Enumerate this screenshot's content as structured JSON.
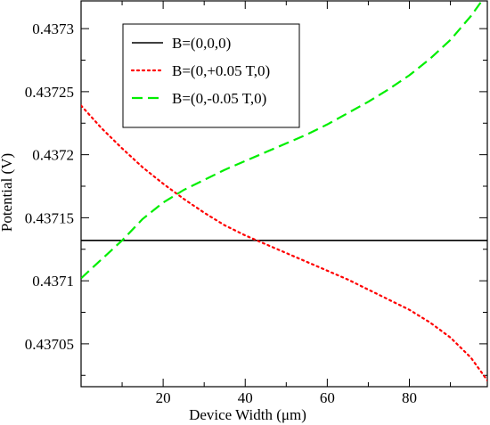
{
  "chart_data": {
    "type": "line",
    "xlabel": "Device Width (μm)",
    "ylabel": "Potential (V)",
    "xlim": [
      0,
      99
    ],
    "ylim": [
      0.437016,
      0.437322
    ],
    "x_ticks": [
      20,
      40,
      60,
      80
    ],
    "x_tick_labels": [
      "20",
      "40",
      "60",
      "80"
    ],
    "y_ticks": [
      0.43705,
      0.4371,
      0.43715,
      0.4372,
      0.43725,
      0.4373
    ],
    "y_tick_labels": [
      "0.43705",
      "0.4371",
      "0.43715",
      "0.4372",
      "0.43725",
      "0.4373"
    ],
    "grid": false,
    "legend_position": "top-left",
    "x": [
      0,
      5,
      10,
      15,
      20,
      25,
      30,
      35,
      40,
      45,
      50,
      55,
      60,
      65,
      70,
      75,
      80,
      85,
      90,
      95,
      99
    ],
    "series": [
      {
        "name": "B=(0,0,0)",
        "color": "#000000",
        "dash": "solid",
        "values": [
          0.437132,
          0.437132,
          0.437132,
          0.437132,
          0.437132,
          0.437132,
          0.437132,
          0.437132,
          0.437132,
          0.437132,
          0.437132,
          0.437132,
          0.437132,
          0.437132,
          0.437132,
          0.437132,
          0.437132,
          0.437132,
          0.437132,
          0.437132,
          0.437132
        ]
      },
      {
        "name": "B=(0,+0.05 T,0)",
        "color": "#ff0000",
        "dash": "dotted",
        "values": [
          0.437239,
          0.437221,
          0.437205,
          0.43719,
          0.437177,
          0.437165,
          0.437154,
          0.437144,
          0.437136,
          0.437129,
          0.437122,
          0.437115,
          0.437108,
          0.437101,
          0.437093,
          0.437085,
          0.437077,
          0.437067,
          0.437055,
          0.437039,
          0.437021
        ]
      },
      {
        "name": "B=(0,-0.05 T,0)",
        "color": "#00ee00",
        "dash": "dashed",
        "values": [
          0.437102,
          0.437117,
          0.437132,
          0.437149,
          0.437162,
          0.437172,
          0.43718,
          0.437188,
          0.437195,
          0.437202,
          0.437209,
          0.437216,
          0.437224,
          0.437233,
          0.437242,
          0.437252,
          0.437263,
          0.437276,
          0.437291,
          0.43731,
          0.437328
        ]
      }
    ]
  }
}
